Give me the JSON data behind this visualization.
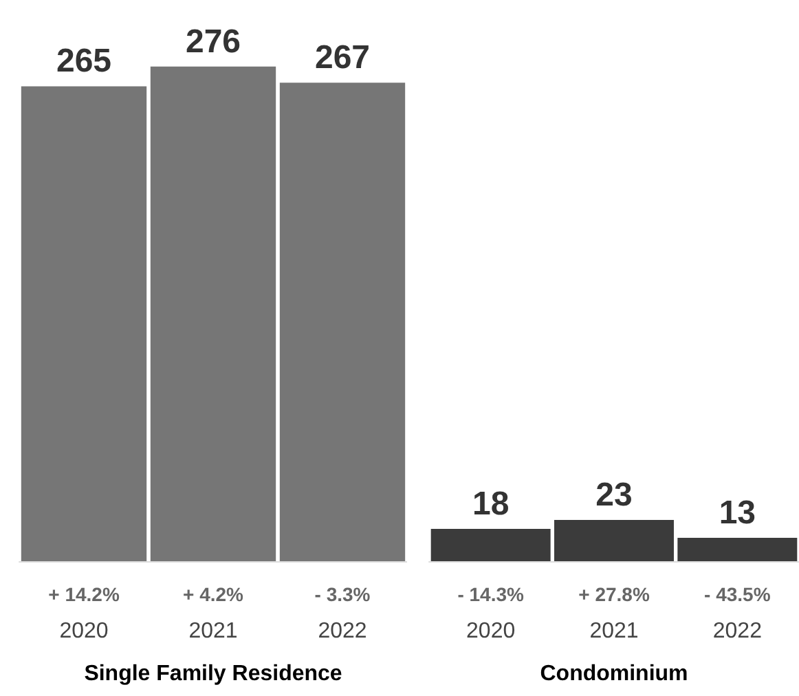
{
  "chart_data": [
    {
      "type": "bar",
      "categories": [
        "2020",
        "2021",
        "2022"
      ],
      "values": [
        265,
        276,
        267
      ],
      "color": "#767676",
      "data_labels": true,
      "xlabel": "Single Family Residence",
      "annotations": [
        "+ 14.2%",
        "+ 4.2%",
        "- 3.3%"
      ],
      "tick_labels": "x"
    },
    {
      "type": "bar",
      "categories": [
        "2020",
        "2021",
        "2022"
      ],
      "values": [
        18,
        23,
        13
      ],
      "color": "#3b3b3b",
      "data_labels": true,
      "xlabel": "Condominium",
      "annotations": [
        "- 14.3%",
        "+ 27.8%",
        "- 43.5%"
      ],
      "tick_labels": "x"
    }
  ]
}
